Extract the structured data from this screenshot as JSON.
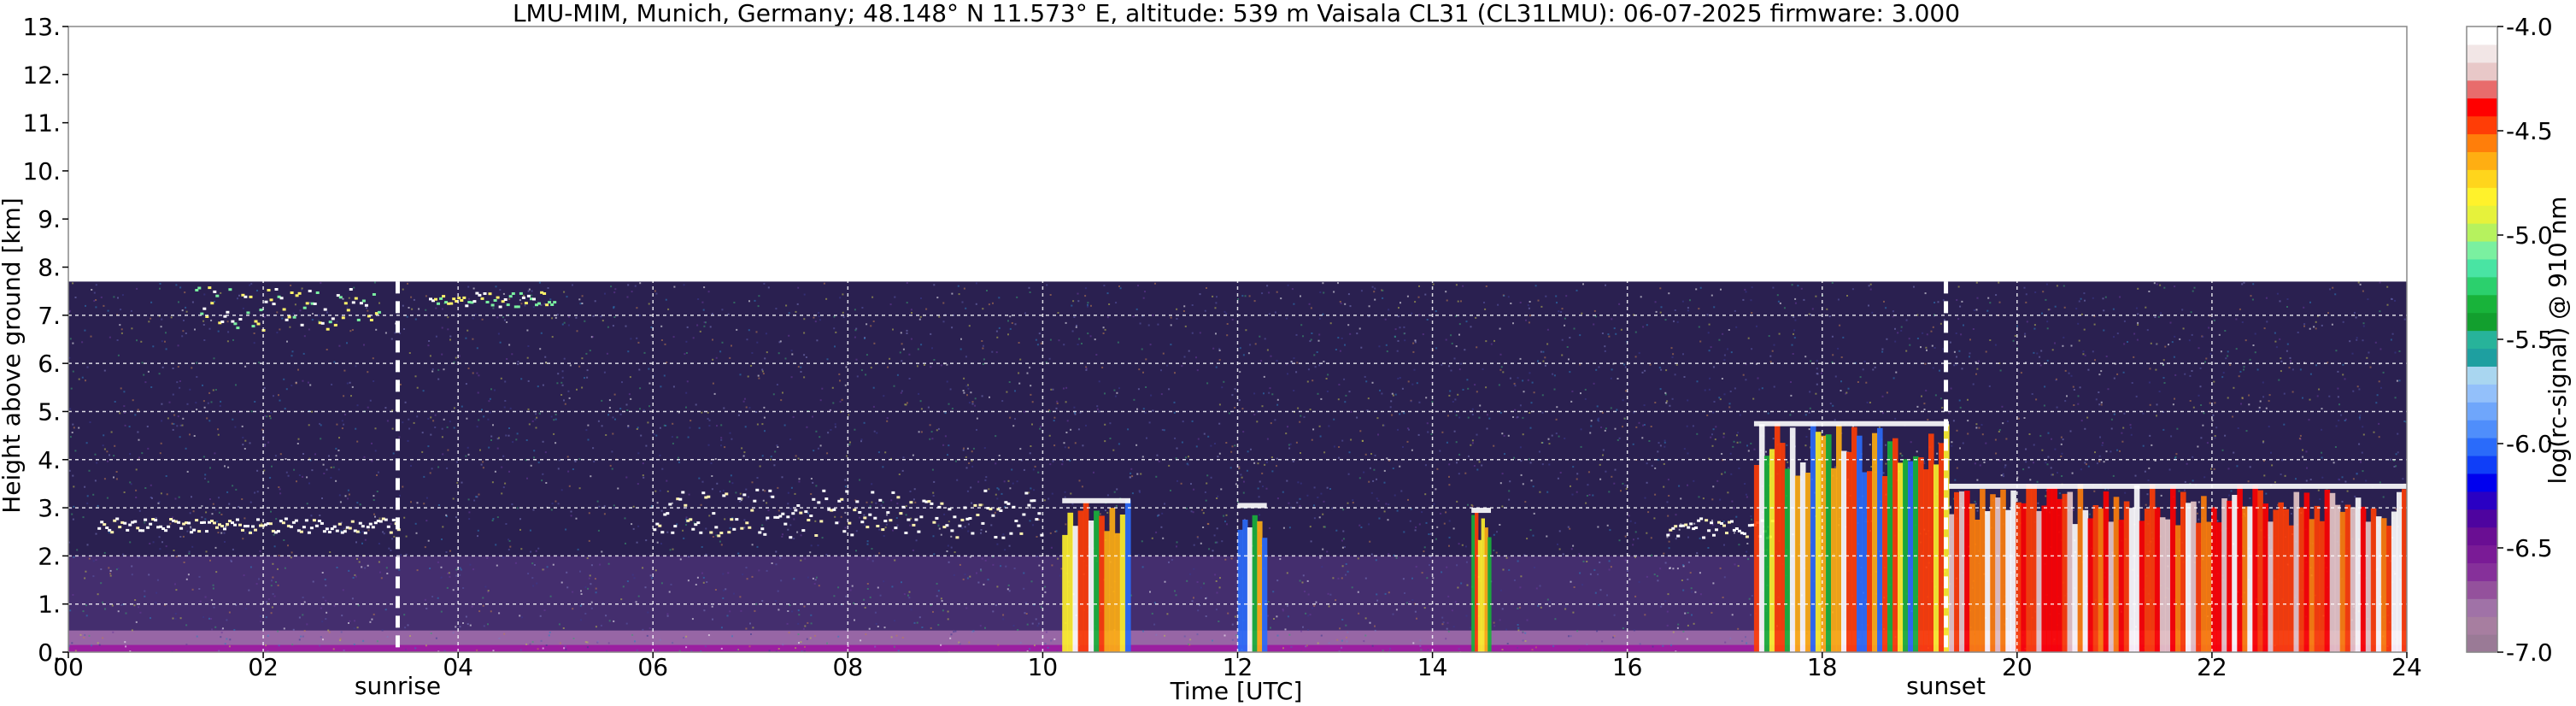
{
  "chart_data": {
    "type": "heatmap",
    "title": "LMU-MIM, Munich, Germany; 48.148° N 11.573° E, altitude: 539 m    Vaisala CL31 (CL31LMU): 06-07-2025    firmware: 3.000",
    "xlabel": "Time [UTC]",
    "ylabel": "Height above ground [km]",
    "xlim": [
      0,
      24
    ],
    "ylim": [
      0,
      13
    ],
    "x_tick_labels": [
      "00",
      "02",
      "04",
      "06",
      "08",
      "10",
      "12",
      "14",
      "16",
      "18",
      "20",
      "22",
      "24"
    ],
    "y_tick_labels": [
      "0.",
      "1.",
      "2.",
      "3.",
      "4.",
      "5.",
      "6.",
      "7.",
      "8.",
      "9.",
      "10.",
      "11.",
      "12.",
      "13."
    ],
    "grid": true,
    "data_top_height_km": 7.7,
    "annotations": [
      {
        "label": "sunrise",
        "time_utc": 3.38
      },
      {
        "label": "sunset",
        "time_utc": 19.27
      }
    ],
    "colorbar": {
      "label": "log(rc-signal) @ 910 nm",
      "range": [
        -7.0,
        -4.0
      ],
      "tick_labels": [
        "-4.0",
        "-4.5",
        "-5.0",
        "-5.5",
        "-6.0",
        "-6.5",
        "-7.0"
      ],
      "colors": [
        "#9a7a96",
        "#a77ea0",
        "#a072a7",
        "#94519c",
        "#86309a",
        "#7a1b96",
        "#6a0e93",
        "#4e049f",
        "#2a00c3",
        "#0000ee",
        "#0f3ef8",
        "#2a6bfa",
        "#4f8efb",
        "#6fa6fb",
        "#93c0fa",
        "#a9d6f0",
        "#1e9fa0",
        "#27b39a",
        "#129f2e",
        "#18b33a",
        "#2bd06d",
        "#49e4a3",
        "#7af0a0",
        "#b6f25e",
        "#e6f23b",
        "#fff22b",
        "#ffd51c",
        "#ffae12",
        "#ff7e0a",
        "#ff3d06",
        "#ff0000",
        "#e86c6c",
        "#e8c8c8",
        "#f2e6e6",
        "#ffffff"
      ]
    },
    "features": [
      {
        "name": "cirrus",
        "time": [
          1.3,
          3.2
        ],
        "height": [
          6.7,
          7.6
        ]
      },
      {
        "name": "cirrus",
        "time": [
          3.7,
          5.0
        ],
        "height": [
          7.2,
          7.5
        ]
      },
      {
        "name": "cloud layer",
        "time": [
          0.3,
          3.4
        ],
        "height": [
          2.5,
          2.8
        ]
      },
      {
        "name": "cloud layer",
        "time": [
          6.0,
          10.0
        ],
        "height": [
          2.4,
          3.4
        ]
      },
      {
        "name": "cloud layer",
        "time": [
          16.4,
          17.5
        ],
        "height": [
          2.4,
          2.8
        ]
      },
      {
        "name": "precipitation",
        "time": [
          10.2,
          10.9
        ],
        "height": [
          0.0,
          3.2
        ]
      },
      {
        "name": "precipitation",
        "time": [
          12.0,
          12.3
        ],
        "height": [
          0.0,
          3.1
        ]
      },
      {
        "name": "precipitation",
        "time": [
          14.4,
          14.6
        ],
        "height": [
          0.0,
          3.0
        ]
      },
      {
        "name": "precipitation",
        "time": [
          17.3,
          19.3
        ],
        "height": [
          0.0,
          4.8
        ]
      },
      {
        "name": "low cloud",
        "time": [
          19.3,
          24.0
        ],
        "height": [
          0.0,
          3.5
        ]
      }
    ]
  }
}
